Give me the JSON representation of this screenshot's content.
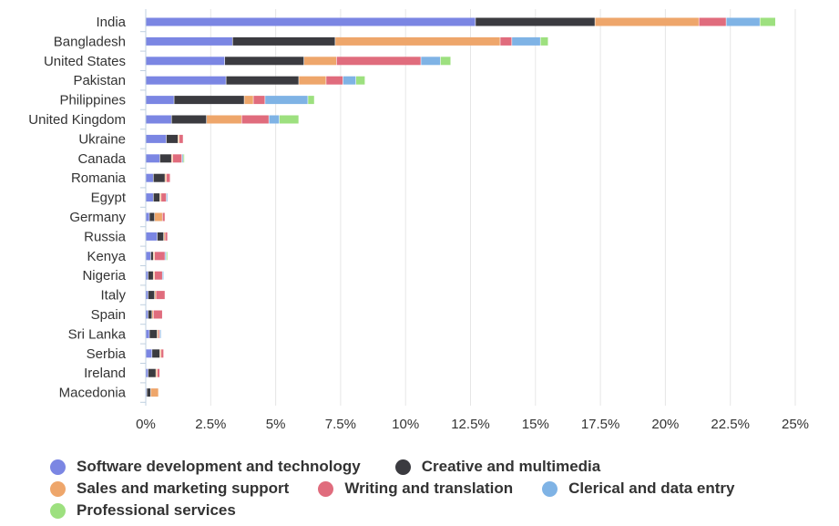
{
  "chart_data": {
    "type": "bar",
    "orientation": "horizontal",
    "stacked": true,
    "title": "",
    "xlabel": "",
    "ylabel": "",
    "xlim": [
      0,
      25
    ],
    "x_ticks": [
      0,
      2.5,
      5,
      7.5,
      10,
      12.5,
      15,
      17.5,
      20,
      22.5,
      25
    ],
    "x_tick_labels": [
      "0%",
      "2.5%",
      "5%",
      "7.5%",
      "10%",
      "12.5%",
      "15%",
      "17.5%",
      "20%",
      "22.5%",
      "25%"
    ],
    "grid": "vertical",
    "legend_position": "bottom",
    "categories": [
      "India",
      "Bangladesh",
      "United States",
      "Pakistan",
      "Philippines",
      "United Kingdom",
      "Ukraine",
      "Canada",
      "Romania",
      "Egypt",
      "Germany",
      "Russia",
      "Kenya",
      "Nigeria",
      "Italy",
      "Spain",
      "Sri Lanka",
      "Serbia",
      "Ireland",
      "Macedonia"
    ],
    "series": [
      {
        "name": "Software development and technology",
        "color": "#7b86e3",
        "values": [
          12.7,
          3.35,
          3.05,
          3.1,
          1.1,
          1.0,
          0.8,
          0.55,
          0.3,
          0.3,
          0.15,
          0.45,
          0.2,
          0.1,
          0.1,
          0.1,
          0.15,
          0.25,
          0.1,
          0.05
        ]
      },
      {
        "name": "Creative and multimedia",
        "color": "#3b3b40",
        "values": [
          4.6,
          3.95,
          3.05,
          2.8,
          2.7,
          1.35,
          0.45,
          0.45,
          0.45,
          0.25,
          0.2,
          0.25,
          0.1,
          0.2,
          0.25,
          0.15,
          0.3,
          0.3,
          0.3,
          0.15
        ]
      },
      {
        "name": "Sales and marketing support",
        "color": "#eea66b",
        "values": [
          4.0,
          6.35,
          1.25,
          1.05,
          0.35,
          1.35,
          0.05,
          0.05,
          0.05,
          0.05,
          0.3,
          0.05,
          0.05,
          0.05,
          0.05,
          0.05,
          0.05,
          0.05,
          0.05,
          0.3
        ]
      },
      {
        "name": "Writing and translation",
        "color": "#e06c7d",
        "values": [
          1.05,
          0.45,
          3.25,
          0.65,
          0.45,
          1.05,
          0.15,
          0.35,
          0.15,
          0.2,
          0.1,
          0.1,
          0.4,
          0.3,
          0.35,
          0.35,
          0.05,
          0.1,
          0.1,
          0.0
        ]
      },
      {
        "name": "Clerical and data entry",
        "color": "#7fb3e5",
        "values": [
          1.3,
          1.1,
          0.75,
          0.5,
          1.65,
          0.4,
          0.0,
          0.05,
          0.0,
          0.05,
          0.0,
          0.0,
          0.05,
          0.05,
          0.0,
          0.0,
          0.05,
          0.0,
          0.0,
          0.0
        ]
      },
      {
        "name": "Professional services",
        "color": "#9de07f",
        "values": [
          0.6,
          0.3,
          0.4,
          0.35,
          0.25,
          0.75,
          0.0,
          0.05,
          0.0,
          0.0,
          0.0,
          0.0,
          0.05,
          0.0,
          0.0,
          0.0,
          0.0,
          0.0,
          0.0,
          0.0
        ]
      }
    ]
  },
  "colors": {
    "axis": "#c0d0e0",
    "grid": "#e6e6e6",
    "text": "#333333"
  }
}
